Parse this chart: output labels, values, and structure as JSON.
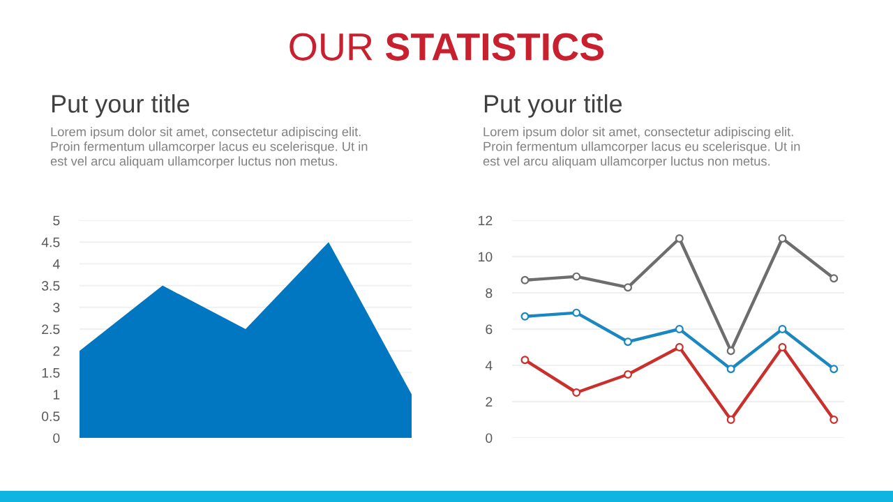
{
  "chart_data": [
    {
      "type": "other",
      "title": "OUR STATISTICS",
      "color": "#c8202f"
    },
    {
      "type": "area",
      "title": "Put your title",
      "subtitle": "Lorem ipsum dolor sit amet, consectetur adipiscing elit.\nProin fermentum ullamcorper lacus eu scelerisque. Ut in\nest vel arcu aliquam ullamcorper luctus non metus.",
      "categories": [
        null,
        null,
        null,
        null,
        null
      ],
      "values": [
        2,
        3.5,
        2.5,
        4.5,
        1
      ],
      "color": "#0077c0",
      "ylim": [
        0,
        5
      ],
      "yticks": [
        0,
        0.5,
        1,
        1.5,
        2,
        2.5,
        3,
        3.5,
        4,
        4.5,
        5
      ],
      "grid": "y"
    },
    {
      "type": "line",
      "title": "Put your title",
      "subtitle": "Lorem ipsum dolor sit amet, consectetur adipiscing elit.\nProin fermentum ullamcorper lacus eu scelerisque. Ut in\nest vel arcu aliquam ullamcorper luctus non metus.",
      "categories": [
        null,
        null,
        null,
        null,
        null,
        null,
        null
      ],
      "series": [
        {
          "color": "#6d6d6d",
          "values": [
            8.7,
            8.9,
            8.3,
            11,
            4.8,
            11,
            8.8
          ]
        },
        {
          "color": "#1a87c0",
          "values": [
            6.7,
            6.9,
            5.3,
            6,
            3.8,
            6,
            3.8
          ]
        },
        {
          "color": "#c9302c",
          "values": [
            4.3,
            2.5,
            3.5,
            5,
            1,
            5,
            1
          ]
        }
      ],
      "ylim": [
        0,
        12
      ],
      "yticks": [
        0,
        2,
        4,
        6,
        8,
        10,
        12
      ],
      "grid": "y",
      "marker": "circle",
      "line_style": "solid"
    }
  ]
}
